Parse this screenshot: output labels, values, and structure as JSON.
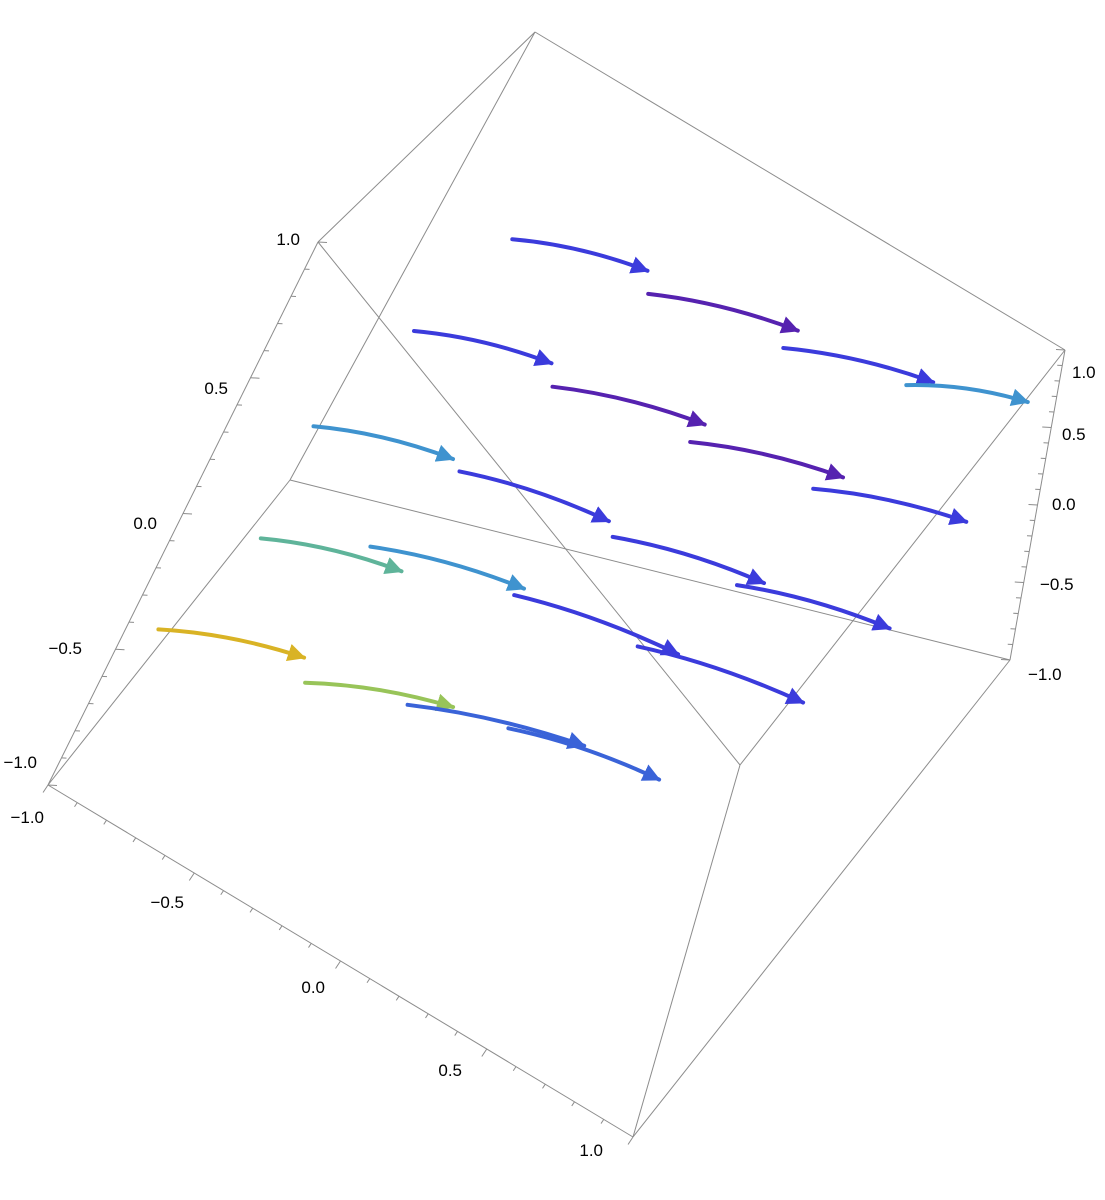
{
  "chart_data": {
    "type": "3d-stream-plot",
    "title": "",
    "xlabel": "",
    "ylabel": "",
    "zlabel": "",
    "x_range": [
      -1.0,
      1.0
    ],
    "y_range": [
      -1.0,
      1.0
    ],
    "z_range": [
      -1.0,
      1.0
    ],
    "axes": {
      "front_axis_ticks": [
        "−1.0",
        "−0.5",
        "0.0",
        "0.5",
        "1.0"
      ],
      "left_vertical_ticks": [
        "−1.0",
        "−0.5",
        "0.0",
        "0.5",
        "1.0"
      ],
      "right_vertical_ticks": [
        "−1.0",
        "−0.5",
        "0.0",
        "0.5",
        "1.0"
      ]
    },
    "color_scale": [
      "#e8721f",
      "#d9b325",
      "#98c459",
      "#5fb49a",
      "#3f93cf",
      "#3a63d8",
      "#3b3bdc",
      "#5622b0",
      "#7b1a92"
    ],
    "stream_segments_in_data_units": [
      {
        "start": [
          -0.95,
          -0.7,
          -0.55
        ],
        "end": [
          -0.55,
          -0.5,
          -0.5
        ],
        "speed": 0.9
      },
      {
        "start": [
          -0.5,
          -0.6,
          -0.5
        ],
        "end": [
          -0.1,
          -0.4,
          -0.45
        ],
        "speed": 0.7
      },
      {
        "start": [
          -0.2,
          -0.55,
          -0.4
        ],
        "end": [
          0.3,
          -0.35,
          -0.35
        ],
        "speed": 0.4
      },
      {
        "start": [
          0.1,
          -0.5,
          -0.3
        ],
        "end": [
          0.55,
          -0.35,
          -0.3
        ],
        "speed": 0.35
      },
      {
        "start": [
          -0.85,
          -0.3,
          -0.35
        ],
        "end": [
          -0.45,
          -0.15,
          -0.3
        ],
        "speed": 0.6
      },
      {
        "start": [
          -0.55,
          -0.25,
          -0.2
        ],
        "end": [
          -0.1,
          -0.1,
          -0.15
        ],
        "speed": 0.45
      },
      {
        "start": [
          -0.1,
          -0.2,
          -0.1
        ],
        "end": [
          0.4,
          -0.05,
          -0.1
        ],
        "speed": 0.3
      },
      {
        "start": [
          0.3,
          -0.15,
          -0.05
        ],
        "end": [
          0.8,
          0.0,
          -0.05
        ],
        "speed": 0.25
      },
      {
        "start": [
          -0.9,
          0.0,
          -0.1
        ],
        "end": [
          -0.5,
          0.15,
          -0.05
        ],
        "speed": 0.5
      },
      {
        "start": [
          -0.45,
          0.05,
          0.0
        ],
        "end": [
          0.0,
          0.2,
          0.0
        ],
        "speed": 0.3
      },
      {
        "start": [
          0.05,
          0.1,
          0.05
        ],
        "end": [
          0.5,
          0.25,
          0.05
        ],
        "speed": 0.2
      },
      {
        "start": [
          0.45,
          0.15,
          0.1
        ],
        "end": [
          0.9,
          0.3,
          0.1
        ],
        "speed": 0.2
      },
      {
        "start": [
          -0.8,
          0.3,
          0.2
        ],
        "end": [
          -0.4,
          0.45,
          0.25
        ],
        "speed": 0.25
      },
      {
        "start": [
          -0.35,
          0.35,
          0.25
        ],
        "end": [
          0.1,
          0.5,
          0.3
        ],
        "speed": 0.15
      },
      {
        "start": [
          0.1,
          0.4,
          0.3
        ],
        "end": [
          0.55,
          0.55,
          0.35
        ],
        "speed": 0.15
      },
      {
        "start": [
          0.5,
          0.45,
          0.35
        ],
        "end": [
          0.95,
          0.6,
          0.4
        ],
        "speed": 0.2
      },
      {
        "start": [
          -0.7,
          0.6,
          0.5
        ],
        "end": [
          -0.3,
          0.75,
          0.55
        ],
        "speed": 0.2
      },
      {
        "start": [
          -0.25,
          0.65,
          0.55
        ],
        "end": [
          0.2,
          0.8,
          0.6
        ],
        "speed": 0.15
      },
      {
        "start": [
          0.2,
          0.7,
          0.6
        ],
        "end": [
          0.65,
          0.85,
          0.65
        ],
        "speed": 0.25
      },
      {
        "start": [
          0.6,
          0.75,
          0.7
        ],
        "end": [
          0.95,
          0.9,
          0.75
        ],
        "speed": 0.5
      }
    ]
  }
}
